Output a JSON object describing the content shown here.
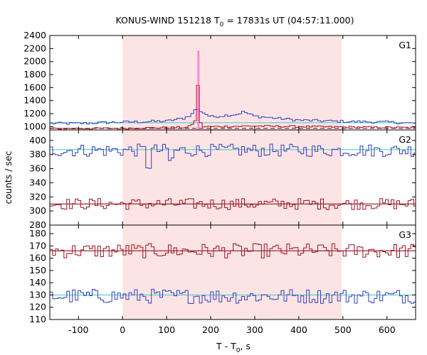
{
  "chart_data": {
    "type": "line",
    "title_main": "KONUS-WIND 151218 T",
    "title_sub": "0",
    "title_tail": " = 17831s UT (04:57:11.000)",
    "xlabel_main": "T - T",
    "xlabel_sub": "0",
    "xlabel_tail": ", s",
    "ylabel": "counts / sec",
    "xlim": [
      -165,
      665
    ],
    "x_ticks": [
      -100,
      0,
      100,
      200,
      300,
      400,
      500,
      600
    ],
    "x_tick_labels": [
      "-100",
      "0",
      "100",
      "200",
      "300",
      "400",
      "500",
      "600"
    ],
    "shaded_interval": [
      0,
      497
    ],
    "shade_color": "#fde4e4",
    "colors": {
      "blue": "#2f3fbf",
      "red": "#a01020",
      "pink": "#ff66cc",
      "cyan": "#40c8c8",
      "darkred": "#7a0010"
    },
    "panels": [
      {
        "name": "G1",
        "ylim": [
          950,
          2400
        ],
        "yticks": [
          1000,
          1200,
          1400,
          1600,
          1800,
          2000,
          2200,
          2400
        ],
        "ytick_labels": [
          "1000",
          "1200",
          "1400",
          "1600",
          "1800",
          "2000",
          "2200",
          "2400"
        ],
        "series": [
          {
            "color": "blue",
            "segments": [
              [
                -165,
                1050
              ],
              [
                -100,
                1050
              ],
              [
                0,
                1070
              ],
              [
                100,
                1085
              ],
              [
                140,
                1130
              ],
              [
                160,
                1200
              ],
              [
                165,
                1270
              ],
              [
                175,
                1250
              ],
              [
                200,
                1150
              ],
              [
                260,
                1190
              ],
              [
                275,
                1230
              ],
              [
                300,
                1160
              ],
              [
                400,
                1100
              ],
              [
                500,
                1080
              ],
              [
                600,
                1070
              ],
              [
                665,
                1050
              ]
            ],
            "noise": 20
          },
          {
            "color": "red",
            "segments": [
              [
                -165,
                970
              ],
              [
                0,
                975
              ],
              [
                150,
                990
              ],
              [
                167,
                1100
              ],
              [
                170,
                1640
              ],
              [
                172,
                1640
              ],
              [
                175,
                1100
              ],
              [
                180,
                1000
              ],
              [
                300,
                1010
              ],
              [
                500,
                995
              ],
              [
                665,
                985
              ]
            ],
            "noise": 14
          }
        ],
        "spike": {
          "x": [
            171,
            173
          ],
          "peak": 2160
        },
        "baselines": [
          {
            "color": "cyan",
            "level": 1060
          },
          {
            "color": "darkred",
            "level": 975,
            "dashed": true
          }
        ]
      },
      {
        "name": "G2",
        "ylim": [
          280,
          415
        ],
        "yticks": [
          280,
          300,
          320,
          340,
          360,
          380,
          400
        ],
        "ytick_labels": [
          "280",
          "300",
          "320",
          "340",
          "360",
          "380",
          "400"
        ],
        "series": [
          {
            "color": "blue",
            "mean": 386,
            "noise": 9,
            "dips": [
              [
                56,
                362
              ],
              [
                112,
                368
              ]
            ]
          },
          {
            "color": "red",
            "mean": 310,
            "noise": 8
          }
        ],
        "baselines": [
          {
            "color": "cyan",
            "level": 387
          },
          {
            "color": "darkred",
            "level": 310
          }
        ]
      },
      {
        "name": "G3",
        "ylim": [
          110,
          187
        ],
        "yticks": [
          110,
          120,
          130,
          140,
          150,
          160,
          170,
          180
        ],
        "ytick_labels": [
          "110",
          "120",
          "130",
          "140",
          "150",
          "160",
          "170",
          "180"
        ],
        "series": [
          {
            "color": "red",
            "mean": 166,
            "noise": 6
          },
          {
            "color": "blue",
            "mean": 129,
            "noise": 6
          }
        ],
        "baselines": [
          {
            "color": "cyan",
            "level": 130
          },
          {
            "color": "darkred",
            "level": 166
          }
        ]
      }
    ]
  }
}
